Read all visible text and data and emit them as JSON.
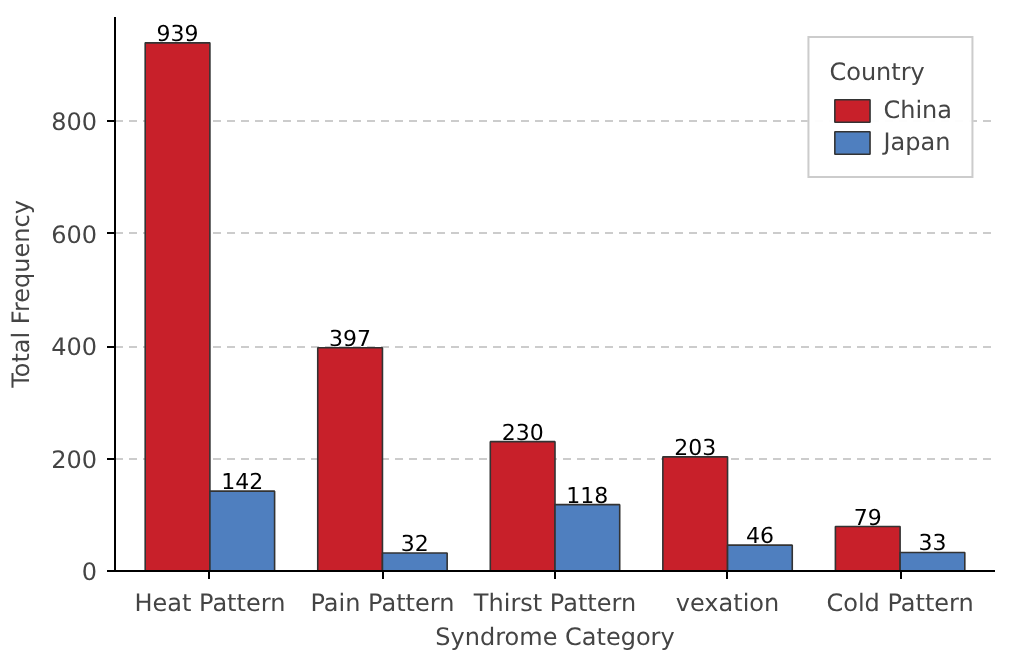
{
  "chart_data": {
    "type": "bar",
    "xlabel": "Syndrome Category",
    "ylabel": "Total Frequency",
    "legend_title": "Country",
    "categories": [
      "Heat Pattern",
      "Pain Pattern",
      "Thirst Pattern",
      "vexation",
      "Cold Pattern"
    ],
    "series": [
      {
        "name": "China",
        "color": "#c8202a",
        "values": [
          939,
          397,
          230,
          203,
          79
        ]
      },
      {
        "name": "Japan",
        "color": "#4f7fbf",
        "values": [
          142,
          32,
          118,
          46,
          33
        ]
      }
    ],
    "ylim": [
      0,
      985
    ],
    "yticks": [
      0,
      200,
      400,
      600,
      800
    ],
    "grid": "y",
    "legend": "top right",
    "data_labels": true
  }
}
